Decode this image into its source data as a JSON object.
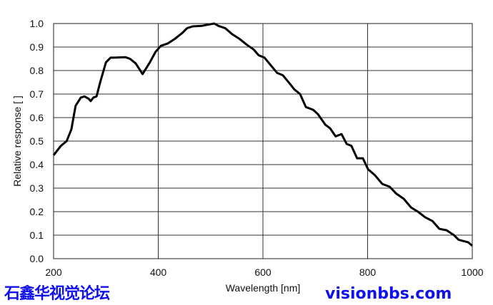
{
  "chart_data": {
    "type": "line",
    "title": "",
    "xlabel": "Wavelength [nm]",
    "ylabel": "Relative response [ ]",
    "xlim": [
      200,
      1000
    ],
    "ylim": [
      0.0,
      1.0
    ],
    "grid": true,
    "xticks": [
      "200",
      "400",
      "600",
      "800",
      "1000"
    ],
    "yticks": [
      "0.0",
      "0.1",
      "0.2",
      "0.3",
      "0.4",
      "0.5",
      "0.6",
      "0.7",
      "0.8",
      "0.9",
      "1.0"
    ],
    "line_color": "#000000",
    "series": [
      {
        "x": [
          200,
          214,
          225,
          234,
          242,
          252,
          259,
          267,
          271,
          276,
          282,
          289,
          300,
          309,
          316,
          337,
          346,
          357,
          370,
          384,
          395,
          405,
          418,
          432,
          446,
          455,
          466,
          483,
          494,
          507,
          515,
          528,
          541,
          555,
          569,
          582,
          592,
          603,
          616,
          627,
          638,
          651,
          660,
          671,
          682,
          696,
          705,
          719,
          728,
          739,
          750,
          760,
          769,
          780,
          791,
          801,
          814,
          828,
          842,
          855,
          869,
          883,
          896,
          910,
          924,
          937,
          951,
          965,
          974,
          992,
          1000
        ],
        "y": [
          0.44,
          0.48,
          0.5,
          0.55,
          0.65,
          0.685,
          0.69,
          0.68,
          0.67,
          0.685,
          0.69,
          0.75,
          0.835,
          0.855,
          0.855,
          0.857,
          0.85,
          0.83,
          0.785,
          0.835,
          0.88,
          0.905,
          0.915,
          0.935,
          0.96,
          0.98,
          0.988,
          0.99,
          0.995,
          1.0,
          0.99,
          0.98,
          0.955,
          0.935,
          0.91,
          0.89,
          0.865,
          0.855,
          0.82,
          0.79,
          0.78,
          0.745,
          0.72,
          0.7,
          0.645,
          0.633,
          0.615,
          0.57,
          0.555,
          0.52,
          0.53,
          0.488,
          0.48,
          0.427,
          0.427,
          0.38,
          0.355,
          0.318,
          0.306,
          0.276,
          0.255,
          0.218,
          0.2,
          0.176,
          0.16,
          0.127,
          0.121,
          0.1,
          0.08,
          0.07,
          0.055
        ]
      }
    ]
  },
  "watermark": {
    "line1": "石鑫华视觉论坛",
    "line2": "visionbbs.com"
  }
}
